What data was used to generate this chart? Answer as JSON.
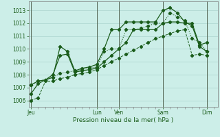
{
  "xlabel": "Pression niveau de la mer( hPa )",
  "ylim": [
    1005.5,
    1013.7
  ],
  "yticks": [
    1006,
    1007,
    1008,
    1009,
    1010,
    1011,
    1012,
    1013
  ],
  "bg_color": "#cceee8",
  "grid_color": "#aad4ce",
  "line_color1": "#1a5c1a",
  "line_color2": "#1a5c1a",
  "line_color3": "#1a5c1a",
  "line_color4": "#1a5c1a",
  "x_day_labels": [
    "Jeu",
    "Lun",
    "Ven",
    "Sam",
    "Dim"
  ],
  "x_day_positions": [
    0,
    9,
    12,
    18,
    24
  ],
  "xlim": [
    -0.3,
    25.5
  ],
  "series1_x": [
    0,
    1,
    2,
    3,
    4,
    5,
    6,
    7,
    8,
    9,
    10,
    11,
    12,
    13,
    14,
    15,
    16,
    17,
    18,
    19,
    20,
    21,
    22,
    23,
    24
  ],
  "series1_y": [
    1006.0,
    1006.2,
    1007.5,
    1007.5,
    1007.7,
    1007.8,
    1008.0,
    1008.1,
    1008.2,
    1008.4,
    1008.7,
    1009.0,
    1009.3,
    1009.6,
    1009.9,
    1010.2,
    1010.5,
    1010.8,
    1011.0,
    1011.2,
    1011.4,
    1011.5,
    1009.5,
    1009.6,
    1009.5
  ],
  "series2_x": [
    0,
    1,
    2,
    3,
    4,
    5,
    6,
    7,
    8,
    9,
    10,
    11,
    12,
    13,
    14,
    15,
    16,
    17,
    18,
    19,
    20,
    21,
    22,
    23,
    24
  ],
  "series2_y": [
    1007.2,
    1007.5,
    1007.6,
    1008.0,
    1009.5,
    1009.6,
    1008.2,
    1008.3,
    1008.4,
    1008.5,
    1009.0,
    1009.5,
    1010.0,
    1010.5,
    1011.5,
    1011.5,
    1011.5,
    1011.5,
    1012.0,
    1012.1,
    1012.1,
    1012.0,
    1012.0,
    1010.3,
    1010.5
  ],
  "series3_x": [
    0,
    1,
    2,
    3,
    4,
    5,
    6,
    7,
    8,
    9,
    10,
    11,
    12,
    13,
    14,
    15,
    16,
    17,
    18,
    19,
    20,
    21,
    22,
    23,
    24
  ],
  "series3_y": [
    1006.5,
    1007.3,
    1007.6,
    1007.8,
    1010.2,
    1009.8,
    1008.3,
    1008.5,
    1008.6,
    1008.8,
    1010.0,
    1011.5,
    1011.5,
    1012.1,
    1012.1,
    1012.1,
    1012.1,
    1012.1,
    1013.0,
    1013.2,
    1012.8,
    1012.1,
    1011.8,
    1010.2,
    1009.8
  ],
  "series4_x": [
    0,
    1,
    2,
    3,
    4,
    5,
    6,
    7,
    8,
    9,
    10,
    11,
    12,
    13,
    14,
    15,
    16,
    17,
    18,
    19,
    20,
    21,
    22,
    23,
    24
  ],
  "series4_y": [
    1007.2,
    1007.5,
    1007.6,
    1007.8,
    1008.1,
    1008.2,
    1008.3,
    1008.4,
    1008.5,
    1008.6,
    1009.8,
    1010.0,
    1010.0,
    1011.5,
    1011.5,
    1011.6,
    1011.8,
    1012.0,
    1012.0,
    1012.8,
    1012.5,
    1012.2,
    1010.8,
    1010.5,
    1009.8
  ]
}
